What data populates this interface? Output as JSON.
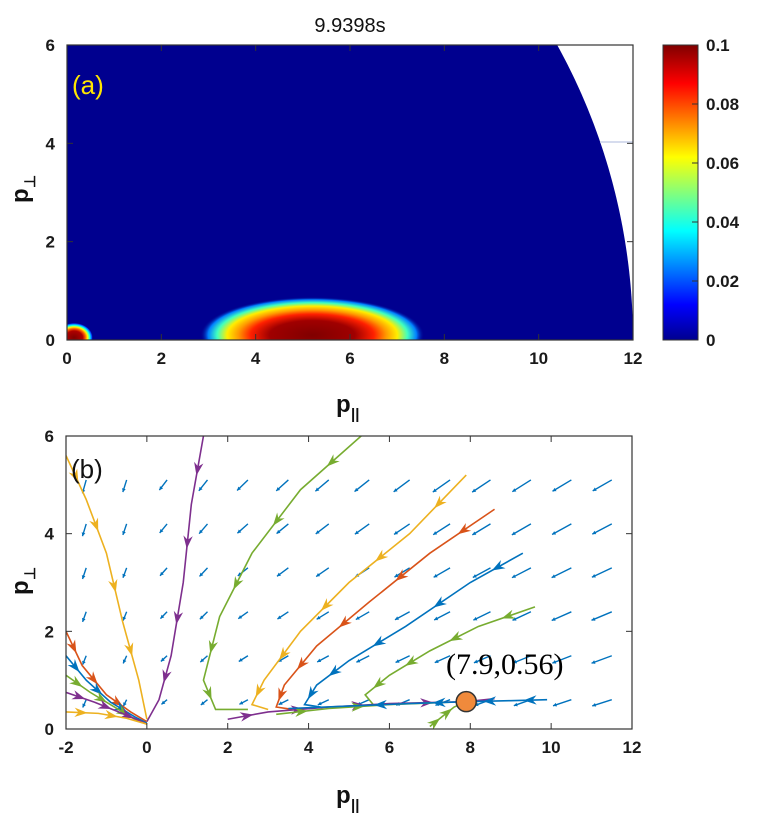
{
  "chart_data": [
    {
      "type": "heatmap",
      "panel_label": "(a)",
      "title": "9.9398s",
      "xlabel_main": "p",
      "xlabel_sub": "||",
      "ylabel_main": "p",
      "ylabel_sub": "⊥",
      "xlim": [
        0,
        12
      ],
      "ylim": [
        0,
        6
      ],
      "x_ticks": [
        "0",
        "2",
        "4",
        "6",
        "8",
        "10",
        "12"
      ],
      "y_ticks": [
        "0",
        "2",
        "4",
        "6"
      ],
      "colorbar": {
        "range": [
          0,
          0.1
        ],
        "ticks": [
          "0",
          "0.02",
          "0.04",
          "0.06",
          "0.08",
          "0.1"
        ],
        "colormap": "jet"
      },
      "features": [
        {
          "name": "main-peak",
          "center_x": 5.2,
          "center_y": 0.1,
          "half_width_x": 1.9,
          "half_width_y": 0.5,
          "peak": 0.1
        },
        {
          "name": "low-energy-peak",
          "center_x": 0.15,
          "center_y": 0.05,
          "half_width_x": 0.4,
          "half_width_y": 0.3,
          "peak": 0.1
        }
      ],
      "boundary_circle_radius": 12,
      "background_color": "#00008f"
    },
    {
      "type": "vector-field",
      "panel_label": "(b)",
      "xlabel_main": "p",
      "xlabel_sub": "||",
      "ylabel_main": "p",
      "ylabel_sub": "⊥",
      "xlim": [
        -2,
        12
      ],
      "ylim": [
        0,
        6
      ],
      "x_ticks": [
        "-2",
        "0",
        "2",
        "4",
        "6",
        "8",
        "10",
        "12"
      ],
      "y_ticks": [
        "0",
        "2",
        "4",
        "6"
      ],
      "fixed_point": {
        "x": 7.9,
        "y": 0.56,
        "label": "(7.9,0.56)",
        "color": "#f08a3c"
      },
      "streamlines": [
        {
          "color": "#edb120",
          "points": [
            [
              -2,
              5.6
            ],
            [
              -1.5,
              4.7
            ],
            [
              -1.0,
              3.6
            ],
            [
              -0.6,
              2.2
            ],
            [
              -0.2,
              1.0
            ],
            [
              0,
              0.2
            ]
          ]
        },
        {
          "color": "#7e2f8e",
          "points": [
            [
              1.4,
              6.0
            ],
            [
              1.1,
              4.6
            ],
            [
              0.9,
              3.0
            ],
            [
              0.6,
              1.5
            ],
            [
              0.3,
              0.6
            ],
            [
              0,
              0.15
            ]
          ]
        },
        {
          "color": "#77ac30",
          "points": [
            [
              5.3,
              6.0
            ],
            [
              3.8,
              4.9
            ],
            [
              2.6,
              3.6
            ],
            [
              1.8,
              2.3
            ],
            [
              1.4,
              1.0
            ],
            [
              1.7,
              0.4
            ],
            [
              2.5,
              0.4
            ]
          ]
        },
        {
          "color": "#edb120",
          "points": [
            [
              7.9,
              5.2
            ],
            [
              6.5,
              4.0
            ],
            [
              5.0,
              3.0
            ],
            [
              3.8,
              2.0
            ],
            [
              2.9,
              1.0
            ],
            [
              2.6,
              0.5
            ],
            [
              3.0,
              0.4
            ]
          ]
        },
        {
          "color": "#d95319",
          "points": [
            [
              8.6,
              4.5
            ],
            [
              7.0,
              3.6
            ],
            [
              5.5,
              2.6
            ],
            [
              4.2,
              1.7
            ],
            [
              3.4,
              0.9
            ],
            [
              3.2,
              0.45
            ],
            [
              3.6,
              0.4
            ]
          ]
        },
        {
          "color": "#0072bd",
          "points": [
            [
              9.3,
              3.6
            ],
            [
              8.0,
              3.0
            ],
            [
              6.4,
              2.1
            ],
            [
              5.0,
              1.4
            ],
            [
              4.2,
              0.9
            ],
            [
              3.9,
              0.5
            ],
            [
              4.3,
              0.45
            ]
          ]
        },
        {
          "color": "#77ac30",
          "points": [
            [
              9.6,
              2.5
            ],
            [
              8.2,
              2.1
            ],
            [
              7.0,
              1.6
            ],
            [
              6.0,
              1.1
            ],
            [
              5.4,
              0.7
            ],
            [
              5.6,
              0.5
            ]
          ]
        },
        {
          "color": "#d95319",
          "points": [
            [
              -2,
              2.0
            ],
            [
              -1.6,
              1.3
            ],
            [
              -1.0,
              0.7
            ],
            [
              -0.4,
              0.35
            ],
            [
              0,
              0.15
            ]
          ]
        },
        {
          "color": "#0072bd",
          "points": [
            [
              -2,
              1.5
            ],
            [
              -1.5,
              1.0
            ],
            [
              -0.9,
              0.55
            ],
            [
              -0.3,
              0.25
            ],
            [
              0,
              0.12
            ]
          ]
        },
        {
          "color": "#77ac30",
          "points": [
            [
              -2,
              1.1
            ],
            [
              -1.4,
              0.75
            ],
            [
              -0.8,
              0.45
            ],
            [
              -0.3,
              0.2
            ],
            [
              0,
              0.1
            ]
          ]
        },
        {
          "color": "#7e2f8e",
          "points": [
            [
              -2,
              0.75
            ],
            [
              -1.3,
              0.55
            ],
            [
              -0.7,
              0.35
            ],
            [
              -0.2,
              0.18
            ],
            [
              0,
              0.1
            ]
          ]
        },
        {
          "color": "#edb120",
          "points": [
            [
              -2,
              0.35
            ],
            [
              -1.2,
              0.32
            ],
            [
              -0.5,
              0.22
            ],
            [
              0,
              0.1
            ]
          ]
        },
        {
          "color": "#7e2f8e",
          "points": [
            [
              2.0,
              0.2
            ],
            [
              3.0,
              0.35
            ],
            [
              4.5,
              0.45
            ],
            [
              6.0,
              0.52
            ],
            [
              7.9,
              0.56
            ],
            [
              8.6,
              0.62
            ]
          ]
        },
        {
          "color": "#77ac30",
          "points": [
            [
              3.2,
              0.3
            ],
            [
              4.5,
              0.42
            ],
            [
              6.0,
              0.5
            ],
            [
              7.5,
              0.55
            ]
          ]
        },
        {
          "color": "#0072bd",
          "points": [
            [
              9.9,
              0.6
            ],
            [
              9.0,
              0.58
            ],
            [
              7.9,
              0.56
            ],
            [
              6.5,
              0.52
            ],
            [
              5.0,
              0.47
            ],
            [
              3.5,
              0.42
            ]
          ]
        },
        {
          "color": "#77ac30",
          "points": [
            [
              7.0,
              0.05
            ],
            [
              7.3,
              0.25
            ],
            [
              7.6,
              0.45
            ],
            [
              7.9,
              0.56
            ]
          ]
        }
      ],
      "quiver_color": "#0072bd"
    }
  ]
}
